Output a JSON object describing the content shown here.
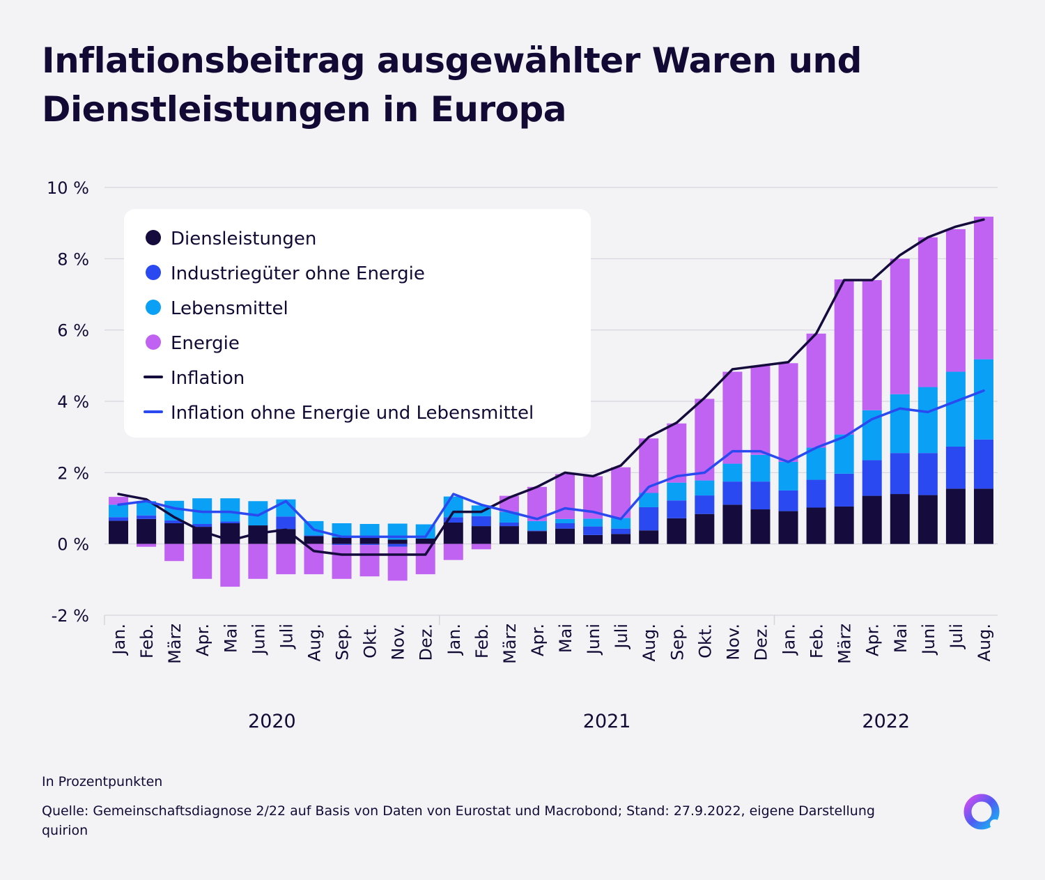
{
  "title": "Inflationsbeitrag ausgewählter Waren und Dienstleistungen in Europa",
  "notes": {
    "unit": "In Prozentpunkten",
    "source": "Quelle: Gemeinschaftsdiagnose 2/22 auf Basis von Daten von Eurostat und Macrobond; Stand: 27.9.2022, eigene Darstellung quirion"
  },
  "colors": {
    "services": "#150b3c",
    "industrial": "#2a49f0",
    "food": "#0aa0f5",
    "energy": "#c063f3",
    "inflation": "#150b3c",
    "core": "#2a49f0",
    "grid": "#d4d4dc"
  },
  "chart_data": {
    "type": "bar",
    "stacked": true,
    "ylim": [
      -2,
      10
    ],
    "yticks": [
      {
        "value": -2,
        "label": "-2 %"
      },
      {
        "value": 0,
        "label": "0 %"
      },
      {
        "value": 2,
        "label": "2 %"
      },
      {
        "value": 4,
        "label": "4 %"
      },
      {
        "value": 6,
        "label": "6 %"
      },
      {
        "value": 8,
        "label": "8 %"
      },
      {
        "value": 10,
        "label": "10 %"
      }
    ],
    "categories": [
      "Jan.",
      "Feb.",
      "März",
      "Apr.",
      "Mai",
      "Juni",
      "Juli",
      "Aug.",
      "Sep.",
      "Okt.",
      "Nov.",
      "Dez.",
      "Jan.",
      "Feb.",
      "März",
      "Apr.",
      "Mai",
      "Juni",
      "Juli",
      "Aug.",
      "Sep.",
      "Okt.",
      "Nov.",
      "Dez.",
      "Jan.",
      "Feb.",
      "März",
      "Apr.",
      "Mai",
      "Juni",
      "Juli",
      "Aug."
    ],
    "years": [
      {
        "label": "2020",
        "from": 0,
        "to": 11
      },
      {
        "label": "2021",
        "from": 12,
        "to": 23
      },
      {
        "label": "2022",
        "from": 24,
        "to": 31
      }
    ],
    "legend": {
      "placement": "top-left",
      "items": [
        {
          "label": "Diensleistungen",
          "type": "dot",
          "color": "#150b3c"
        },
        {
          "label": "Industriegüter ohne Energie",
          "type": "dot",
          "color": "#2a49f0"
        },
        {
          "label": "Lebensmittel",
          "type": "dot",
          "color": "#0aa0f5"
        },
        {
          "label": "Energie",
          "type": "dot",
          "color": "#c063f3"
        },
        {
          "label": "Inflation",
          "type": "line",
          "color": "#150b3c"
        },
        {
          "label": "Inflation ohne Energie und Lebensmittel",
          "type": "line",
          "color": "#2a49f0"
        }
      ]
    },
    "bar_series": [
      {
        "name": "Diensleistungen",
        "color": "#150b3c",
        "values": [
          0.65,
          0.7,
          0.58,
          0.48,
          0.58,
          0.52,
          0.42,
          0.22,
          0.18,
          0.18,
          0.12,
          0.15,
          0.6,
          0.5,
          0.5,
          0.36,
          0.43,
          0.25,
          0.28,
          0.38,
          0.72,
          0.84,
          1.1,
          0.97,
          0.92,
          1.02,
          1.05,
          1.35,
          1.4,
          1.37,
          1.55,
          1.55
        ]
      },
      {
        "name": "Industriegüter ohne Energie",
        "color": "#2a49f0",
        "values": [
          0.1,
          0.1,
          0.08,
          0.08,
          0.05,
          0.0,
          0.35,
          0.02,
          -0.03,
          -0.03,
          -0.08,
          0.0,
          0.15,
          0.28,
          0.1,
          0.02,
          0.15,
          0.24,
          0.15,
          0.65,
          0.5,
          0.52,
          0.65,
          0.78,
          0.58,
          0.78,
          0.92,
          1.0,
          1.15,
          1.18,
          1.18,
          1.38
        ]
      },
      {
        "name": "Lebensmittel",
        "color": "#0aa0f5",
        "values": [
          0.35,
          0.4,
          0.55,
          0.72,
          0.65,
          0.68,
          0.48,
          0.4,
          0.4,
          0.38,
          0.45,
          0.4,
          0.58,
          0.3,
          0.3,
          0.26,
          0.12,
          0.22,
          0.3,
          0.4,
          0.5,
          0.42,
          0.5,
          0.75,
          0.8,
          0.9,
          1.1,
          1.4,
          1.65,
          1.85,
          2.1,
          2.25
        ]
      },
      {
        "name": "Energie",
        "color": "#c063f3",
        "values": [
          0.22,
          -0.08,
          -0.48,
          -0.98,
          -1.2,
          -0.98,
          -0.85,
          -0.85,
          -0.95,
          -0.88,
          -0.95,
          -0.85,
          -0.45,
          -0.15,
          0.45,
          0.96,
          1.26,
          1.19,
          1.42,
          1.53,
          1.66,
          2.29,
          2.58,
          2.5,
          2.77,
          3.2,
          4.35,
          3.65,
          3.8,
          4.2,
          4.0,
          4.0
        ]
      }
    ],
    "line_series": [
      {
        "name": "Inflation",
        "color": "#150b3c",
        "values": [
          1.4,
          1.25,
          0.75,
          0.35,
          0.1,
          0.3,
          0.4,
          -0.2,
          -0.3,
          -0.3,
          -0.3,
          -0.3,
          0.9,
          0.9,
          1.3,
          1.6,
          2.0,
          1.9,
          2.2,
          3.0,
          3.4,
          4.1,
          4.9,
          5.0,
          5.1,
          5.9,
          7.4,
          7.4,
          8.1,
          8.6,
          8.9,
          9.1
        ]
      },
      {
        "name": "Inflation ohne Energie und Lebensmittel",
        "color": "#2a49f0",
        "values": [
          1.1,
          1.2,
          1.0,
          0.9,
          0.9,
          0.8,
          1.2,
          0.4,
          0.2,
          0.2,
          0.2,
          0.2,
          1.4,
          1.1,
          0.9,
          0.7,
          1.0,
          0.9,
          0.7,
          1.6,
          1.9,
          2.0,
          2.6,
          2.6,
          2.3,
          2.7,
          3.0,
          3.5,
          3.8,
          3.7,
          4.0,
          4.3
        ]
      }
    ]
  }
}
